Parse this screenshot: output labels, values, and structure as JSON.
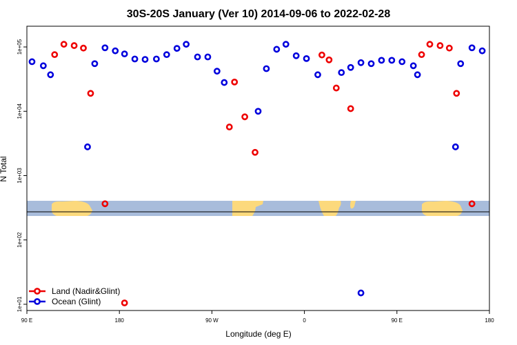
{
  "chart_data": {
    "type": "scatter",
    "title": "30S-20S January (Ver 10)   2014-09-06 to 2022-02-28",
    "xlabel": "Longitude (deg E)",
    "ylabel": "N Total",
    "y_scale": "log",
    "xlim": [
      90,
      540
    ],
    "ylim": [
      8.0,
      210000
    ],
    "x_ticks": [
      {
        "value": 90,
        "label": "90 E"
      },
      {
        "value": 180,
        "label": "180"
      },
      {
        "value": 270,
        "label": "90 W"
      },
      {
        "value": 360,
        "label": "0"
      },
      {
        "value": 450,
        "label": "90 E"
      },
      {
        "value": 540,
        "label": "180"
      }
    ],
    "y_ticks": [
      {
        "value": 10,
        "label": "1e+01"
      },
      {
        "value": 100,
        "label": "1e+02"
      },
      {
        "value": 1000,
        "label": "1e+03"
      },
      {
        "value": 10000,
        "label": "1e+04"
      },
      {
        "value": 100000,
        "label": "1e+05"
      }
    ],
    "grid": false,
    "legend_position": "bottom-left",
    "series": [
      {
        "name": "Land (Nadir&Glint)",
        "color": "#ee0000",
        "points": [
          {
            "x": 117,
            "y": 76000
          },
          {
            "x": 126,
            "y": 110000
          },
          {
            "x": 136,
            "y": 105000
          },
          {
            "x": 145,
            "y": 96000
          },
          {
            "x": 152,
            "y": 19000
          },
          {
            "x": 166,
            "y": 365
          },
          {
            "x": 185,
            "y": 10.5
          },
          {
            "x": 287,
            "y": 5700
          },
          {
            "x": 292,
            "y": 28500
          },
          {
            "x": 302,
            "y": 8200
          },
          {
            "x": 312,
            "y": 2300
          },
          {
            "x": 377,
            "y": 75000
          },
          {
            "x": 384,
            "y": 63000
          },
          {
            "x": 391,
            "y": 23000
          },
          {
            "x": 405,
            "y": 11000
          },
          {
            "x": 474,
            "y": 76000
          },
          {
            "x": 482,
            "y": 110000
          },
          {
            "x": 492,
            "y": 105000
          },
          {
            "x": 501,
            "y": 96000
          },
          {
            "x": 508,
            "y": 19000
          },
          {
            "x": 523,
            "y": 365
          }
        ]
      },
      {
        "name": "Ocean (Glint)",
        "color": "#0000dd",
        "points": [
          {
            "x": 95,
            "y": 59000
          },
          {
            "x": 106,
            "y": 51000
          },
          {
            "x": 113,
            "y": 37000
          },
          {
            "x": 149,
            "y": 2800
          },
          {
            "x": 156,
            "y": 55000
          },
          {
            "x": 166,
            "y": 97000
          },
          {
            "x": 176,
            "y": 87000
          },
          {
            "x": 185,
            "y": 78000
          },
          {
            "x": 195,
            "y": 65000
          },
          {
            "x": 205,
            "y": 64000
          },
          {
            "x": 216,
            "y": 65000
          },
          {
            "x": 226,
            "y": 76000
          },
          {
            "x": 236,
            "y": 95000
          },
          {
            "x": 245,
            "y": 110000
          },
          {
            "x": 256,
            "y": 70000
          },
          {
            "x": 266,
            "y": 70000
          },
          {
            "x": 275,
            "y": 42000
          },
          {
            "x": 282,
            "y": 28000
          },
          {
            "x": 315,
            "y": 10000
          },
          {
            "x": 323,
            "y": 46000
          },
          {
            "x": 333,
            "y": 92000
          },
          {
            "x": 342,
            "y": 110000
          },
          {
            "x": 352,
            "y": 73000
          },
          {
            "x": 362,
            "y": 66000
          },
          {
            "x": 373,
            "y": 37000
          },
          {
            "x": 396,
            "y": 40000
          },
          {
            "x": 405,
            "y": 48000
          },
          {
            "x": 415,
            "y": 57000
          },
          {
            "x": 425,
            "y": 55000
          },
          {
            "x": 435,
            "y": 62000
          },
          {
            "x": 445,
            "y": 62000
          },
          {
            "x": 455,
            "y": 59000
          },
          {
            "x": 466,
            "y": 51000
          },
          {
            "x": 470,
            "y": 37000
          },
          {
            "x": 507,
            "y": 2800
          },
          {
            "x": 512,
            "y": 55000
          },
          {
            "x": 523,
            "y": 97000
          },
          {
            "x": 533,
            "y": 87000
          },
          {
            "x": 415,
            "y": 15
          }
        ]
      }
    ]
  }
}
